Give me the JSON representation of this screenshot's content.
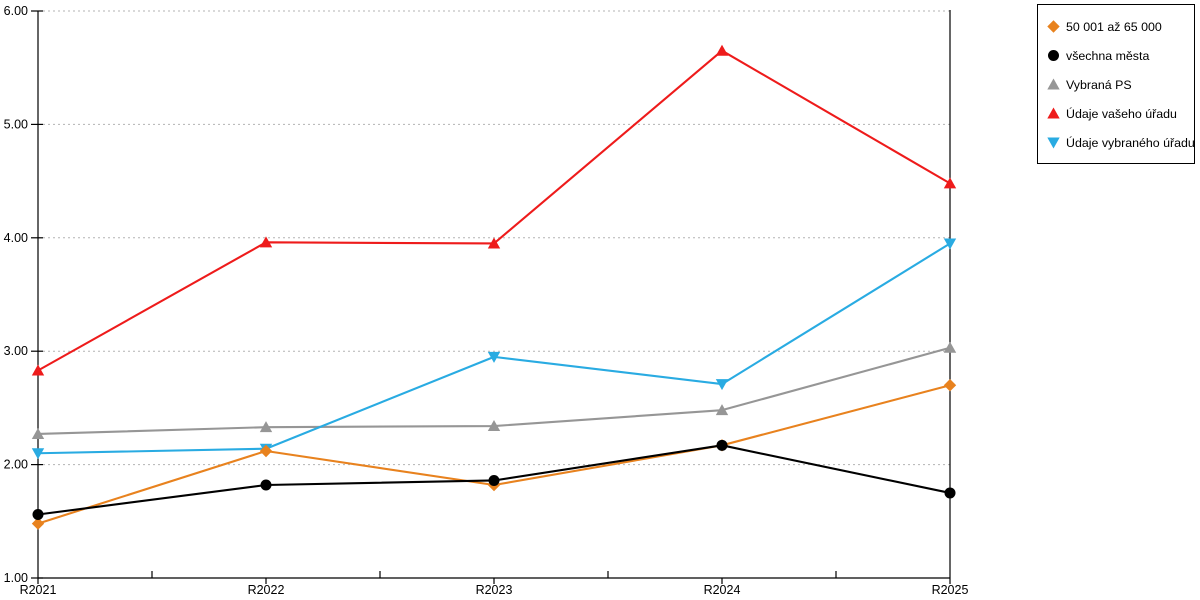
{
  "chart_data": {
    "type": "line",
    "title": "",
    "xlabel": "",
    "ylabel": "",
    "categories": [
      "R2021",
      "R2022",
      "R2023",
      "R2024",
      "R2025"
    ],
    "series": [
      {
        "name": "50 001 až 65 000",
        "color": "#E8821E",
        "marker": "diamond",
        "values": [
          1.48,
          2.12,
          1.82,
          2.17,
          2.7
        ]
      },
      {
        "name": "všechna města",
        "color": "#000000",
        "marker": "circle",
        "values": [
          1.56,
          1.82,
          1.86,
          2.17,
          1.75
        ]
      },
      {
        "name": "Vybraná PS",
        "color": "#969696",
        "marker": "triangle-up",
        "values": [
          2.27,
          2.33,
          2.34,
          2.48,
          3.03
        ]
      },
      {
        "name": "Údaje vašeho úřadu",
        "color": "#EE1B1B",
        "marker": "triangle-up",
        "values": [
          2.83,
          3.96,
          3.95,
          5.65,
          4.48
        ]
      },
      {
        "name": "Údaje vybraného úřadu",
        "color": "#29ABE2",
        "marker": "triangle-down",
        "values": [
          2.1,
          2.14,
          2.95,
          2.71,
          3.95
        ]
      }
    ],
    "ylim": [
      1,
      6
    ],
    "ytick_labels": [
      "1.00",
      "2.00",
      "3.00",
      "4.00",
      "5.00",
      "6.00"
    ],
    "grid": "horizontal-dotted",
    "grid_color": "#b3b3b3",
    "axis_color": "#000000",
    "background": "#FFFFFF",
    "legend_position": "outside-top-right",
    "draw_order": [
      3,
      2,
      4,
      0,
      1
    ]
  }
}
